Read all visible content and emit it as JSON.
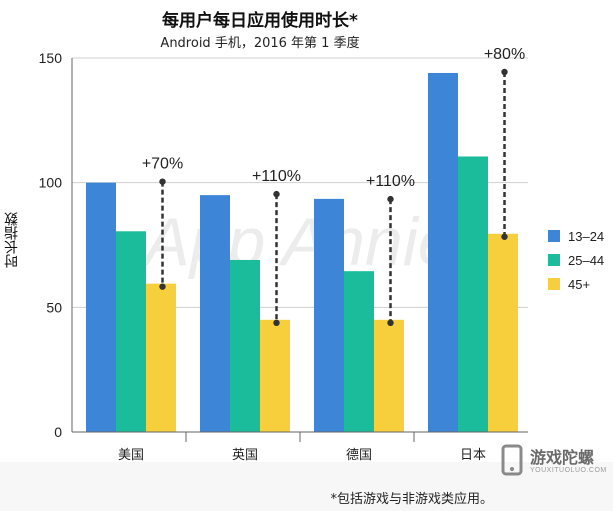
{
  "title": "每用户每日应用使用时长*",
  "subtitle": "Android 手机，2016 年第 1 季度",
  "footnote": "*包括游戏与非游戏类应用。",
  "watermark": "App Annie",
  "logo": {
    "name": "游戏陀螺",
    "sub": "YOUXITUOLUO.COM",
    "icon": "phone-logo-icon"
  },
  "chart_data": {
    "type": "bar",
    "ylabel": "时长指数",
    "ylim": [
      0,
      150
    ],
    "yticks": [
      0,
      50,
      100,
      150
    ],
    "grid": true,
    "legend_position": "right",
    "categories": [
      "美国",
      "英国",
      "德国",
      "日本"
    ],
    "series": [
      {
        "name": "13–24",
        "color": "#3d85d6",
        "values": [
          100,
          95,
          93.5,
          144
        ]
      },
      {
        "name": "25–44",
        "color": "#1abc9c",
        "values": [
          80.5,
          69,
          64.5,
          110.5
        ]
      },
      {
        "name": "45+",
        "color": "#f7cf3d",
        "values": [
          59.5,
          45,
          45,
          79.5
        ]
      }
    ],
    "annotations": [
      {
        "category": "美国",
        "label": "+70%",
        "top": 100
      },
      {
        "category": "英国",
        "label": "+110%",
        "top": 95
      },
      {
        "category": "德国",
        "label": "+110%",
        "top": 93
      },
      {
        "category": "日本",
        "label": "+80%",
        "top": 144
      }
    ]
  }
}
